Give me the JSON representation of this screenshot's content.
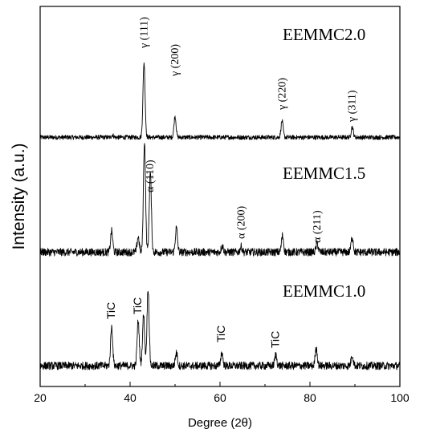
{
  "chart_data": {
    "type": "line",
    "title": "",
    "xlabel": "Degree (2θ)",
    "ylabel": "Intensity (a.u.)",
    "xlim": [
      20,
      100
    ],
    "x_ticks": [
      "20",
      "40",
      "60",
      "80",
      "100"
    ],
    "y_ticks_shown": false,
    "grid": false,
    "series": [
      {
        "name": "EEMMC2.0",
        "baseline": 4,
        "noise": 3,
        "peaks": [
          {
            "x": 36.1,
            "height": 3
          },
          {
            "x": 43.1,
            "height": 100
          },
          {
            "x": 50.0,
            "height": 28
          },
          {
            "x": 73.8,
            "height": 22
          },
          {
            "x": 89.4,
            "height": 14
          }
        ]
      },
      {
        "name": "EEMMC1.5",
        "baseline": 4,
        "noise": 3.5,
        "peaks": [
          {
            "x": 35.9,
            "height": 19
          },
          {
            "x": 41.8,
            "height": 14
          },
          {
            "x": 43.2,
            "height": 100
          },
          {
            "x": 44.5,
            "height": 72
          },
          {
            "x": 50.3,
            "height": 22
          },
          {
            "x": 60.5,
            "height": 6
          },
          {
            "x": 64.7,
            "height": 5
          },
          {
            "x": 73.9,
            "height": 15
          },
          {
            "x": 81.6,
            "height": 8
          },
          {
            "x": 89.4,
            "height": 14
          }
        ]
      },
      {
        "name": "EEMMC1.0",
        "baseline": 6,
        "noise": 5,
        "peaks": [
          {
            "x": 35.9,
            "height": 50
          },
          {
            "x": 41.8,
            "height": 58
          },
          {
            "x": 43.0,
            "height": 65
          },
          {
            "x": 44.0,
            "height": 100
          },
          {
            "x": 50.3,
            "height": 17
          },
          {
            "x": 60.4,
            "height": 17
          },
          {
            "x": 72.4,
            "height": 14
          },
          {
            "x": 81.4,
            "height": 23
          },
          {
            "x": 89.4,
            "height": 14
          }
        ]
      }
    ],
    "annotations": {
      "gamma": [
        {
          "label": "γ (111)",
          "x": 43.1
        },
        {
          "label": "γ (200)",
          "x": 50.0
        },
        {
          "label": "γ (220)",
          "x": 73.8
        },
        {
          "label": "γ (311)",
          "x": 89.4
        }
      ],
      "alpha": [
        {
          "label": "α (110)",
          "x": 44.5
        },
        {
          "label": "α (200)",
          "x": 64.7
        },
        {
          "label": "α (211)",
          "x": 81.6
        }
      ],
      "tic": [
        {
          "label": "TiC",
          "x": 35.9
        },
        {
          "label": "TiC",
          "x": 41.8
        },
        {
          "label": "TiC",
          "x": 60.4
        },
        {
          "label": "TiC",
          "x": 72.4
        }
      ]
    }
  }
}
